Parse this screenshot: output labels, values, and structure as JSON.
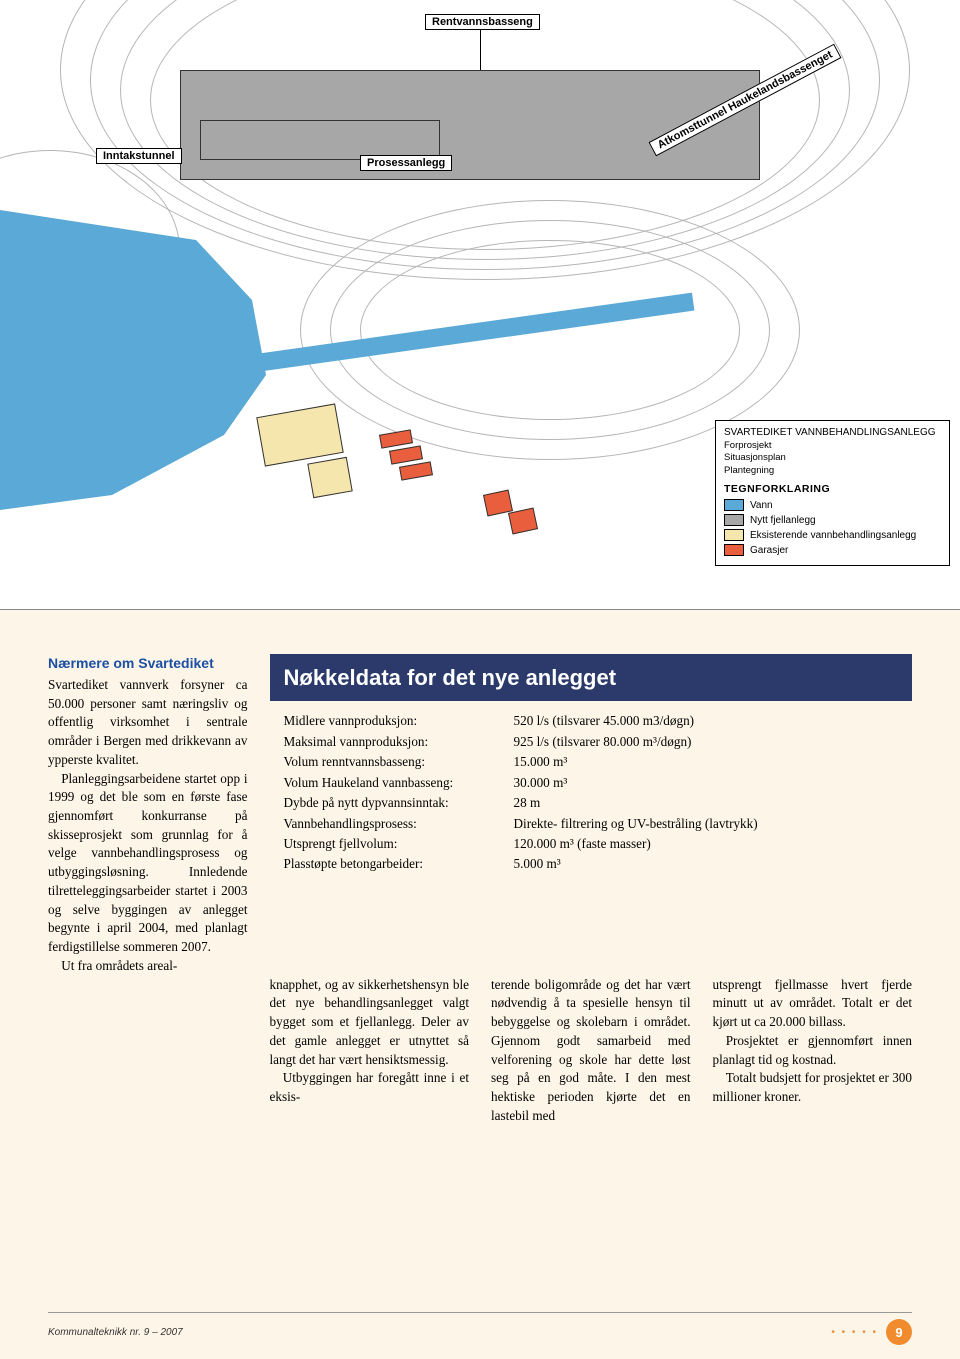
{
  "map": {
    "labels": {
      "rentvann": "Rentvannsbasseng",
      "inntak": "Inntakstunnel",
      "prosess": "Prosessanlegg",
      "atkomst": "Atkomsttunnel Haukelandsbassenget"
    },
    "legend": {
      "title_line1": "SVARTEDIKET VANNBEHANDLINGSANLEGG",
      "title_line2": "Forprosjekt",
      "title_line3": "Situasjonsplan",
      "title_line4": "Plantegning",
      "header": "TEGNFORKLARING",
      "items": [
        {
          "color": "#5aa9d6",
          "label": "Vann"
        },
        {
          "color": "#a7a7a7",
          "label": "Nytt fjellanlegg"
        },
        {
          "color": "#f5e6ad",
          "label": "Eksisterende vannbehandlingsanlegg"
        },
        {
          "color": "#e95f3e",
          "label": "Garasjer"
        }
      ]
    }
  },
  "article": {
    "heading": "Nærmere om Svartediket",
    "col1_p1": "Svartediket vannverk forsyner ca 50.000 personer samt næringsliv og offentlig virksomhet i sentrale områder i Bergen med drikkevann av ypperste kvalitet.",
    "col1_p2": "Planleggingsarbeidene startet opp i 1999 og det ble som en første fase gjennomført konkurranse på skisseprosjekt som grunnlag for å velge vannbehandlingsprosess og utbyggingsløsning. Innledende tilretteleggingsarbeider startet i 2003 og selve byggingen av anlegget begynte i april 2004, med planlagt ferdigstillelse sommeren 2007.",
    "col1_p3_lead": "Ut fra områdets areal-",
    "col2": "knapphet, og av sikkerhetshensyn ble det nye behandlingsanlegget valgt bygget som et fjellanlegg. Deler av det gamle anlegget er utnyttet så langt det har vært hensiktsmessig.",
    "col2b": "Utbyggingen har foregått inne i et eksis-",
    "col3": "terende boligområde og det har vært nødvendig å ta spesielle hensyn til bebyggelse og skolebarn i området. Gjennom godt samarbeid med velforening og skole har dette løst seg på en god måte. I den mest hektiske perioden kjørte det en lastebil med",
    "col4": "utsprengt fjellmasse hvert fjerde minutt ut av området. Totalt er det kjørt ut ca 20.000 billass.",
    "col4b": "Prosjektet er gjennomført innen planlagt tid og kostnad.",
    "col4c": "Totalt budsjett for prosjektet er 300 millioner kroner."
  },
  "infobox": {
    "title": "Nøkkeldata for det nye anlegget",
    "rows": [
      {
        "label": "Midlere vannproduksjon:",
        "value": "520 l/s (tilsvarer 45.000 m3/døgn)"
      },
      {
        "label": "Maksimal vannproduksjon:",
        "value": "925 l/s (tilsvarer 80.000 m³/døgn)"
      },
      {
        "label": "Volum renntvannsbasseng:",
        "value": "15.000 m³"
      },
      {
        "label": "Volum Haukeland vannbasseng:",
        "value": "30.000 m³"
      },
      {
        "label": "Dybde på nytt dypvannsinntak:",
        "value": "28 m"
      },
      {
        "label": "Vannbehandlingsprosess:",
        "value": "Direkte- filtrering og UV-bestråling (lavtrykk)"
      },
      {
        "label": "Utsprengt fjellvolum:",
        "value": "120.000 m³ (faste masser)"
      },
      {
        "label": "Plasstøpte betongarbeider:",
        "value": "5.000 m³"
      }
    ]
  },
  "footer": {
    "publication": "Kommunalteknikk nr. 9 – 2007",
    "page": "9"
  },
  "colors": {
    "page_bg": "#fdf6e8",
    "heading": "#1a4fa3",
    "infobox_header": "#2b3a6b",
    "badge": "#f08c2e",
    "water": "#5aa9d6",
    "facility": "#a7a7a7",
    "existing": "#f5e6ad",
    "garage": "#e95f3e"
  }
}
